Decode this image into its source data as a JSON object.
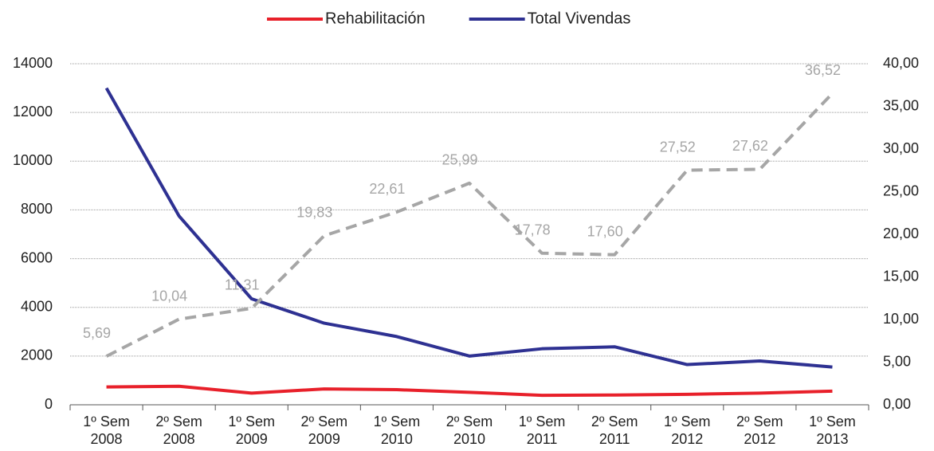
{
  "chart_data": {
    "type": "line",
    "categories": [
      "1º Sem\n2008",
      "2º Sem\n2008",
      "1º Sem\n2009",
      "2º Sem\n2009",
      "1º Sem\n2010",
      "2º Sem\n2010",
      "1º Sem\n2011",
      "2º Sem\n2011",
      "1º Sem\n2012",
      "2º Sem\n2012",
      "1º Sem\n2013"
    ],
    "series": [
      {
        "name": "Rehabilitación",
        "color": "#e8202a",
        "values": [
          730,
          760,
          480,
          650,
          620,
          510,
          390,
          400,
          430,
          480,
          560
        ]
      },
      {
        "name": "Total Vivendas",
        "color": "#2e3192",
        "values": [
          13000,
          7750,
          4350,
          3350,
          2800,
          2000,
          2300,
          2380,
          1650,
          1800,
          1550
        ]
      },
      {
        "color": "#a6a6a6",
        "axis": "y2",
        "dashed": true,
        "values": [
          5.69,
          10.04,
          11.31,
          19.83,
          22.61,
          25.99,
          17.78,
          17.6,
          27.52,
          27.62,
          36.52
        ],
        "value_labels": [
          "5,69",
          "10,04",
          "11,31",
          "19,83",
          "22,61",
          "25,99",
          "17,78",
          "17,60",
          "27,52",
          "27,62",
          "36,52"
        ]
      }
    ],
    "ylim": [
      0,
      14000
    ],
    "yticks": [
      0,
      2000,
      4000,
      6000,
      8000,
      10000,
      12000,
      14000
    ],
    "y2lim": [
      0,
      40
    ],
    "y2ticks": [
      {
        "value": 0,
        "label": "0,00"
      },
      {
        "value": 5,
        "label": "5,00"
      },
      {
        "value": 10,
        "label": "10,00"
      },
      {
        "value": 15,
        "label": "15,00"
      },
      {
        "value": 20,
        "label": "20,00"
      },
      {
        "value": 25,
        "label": "25,00"
      },
      {
        "value": 30,
        "label": "30,00"
      },
      {
        "value": 35,
        "label": "35,00"
      },
      {
        "value": 40,
        "label": "40,00"
      }
    ],
    "grid": true,
    "legend": "top"
  }
}
